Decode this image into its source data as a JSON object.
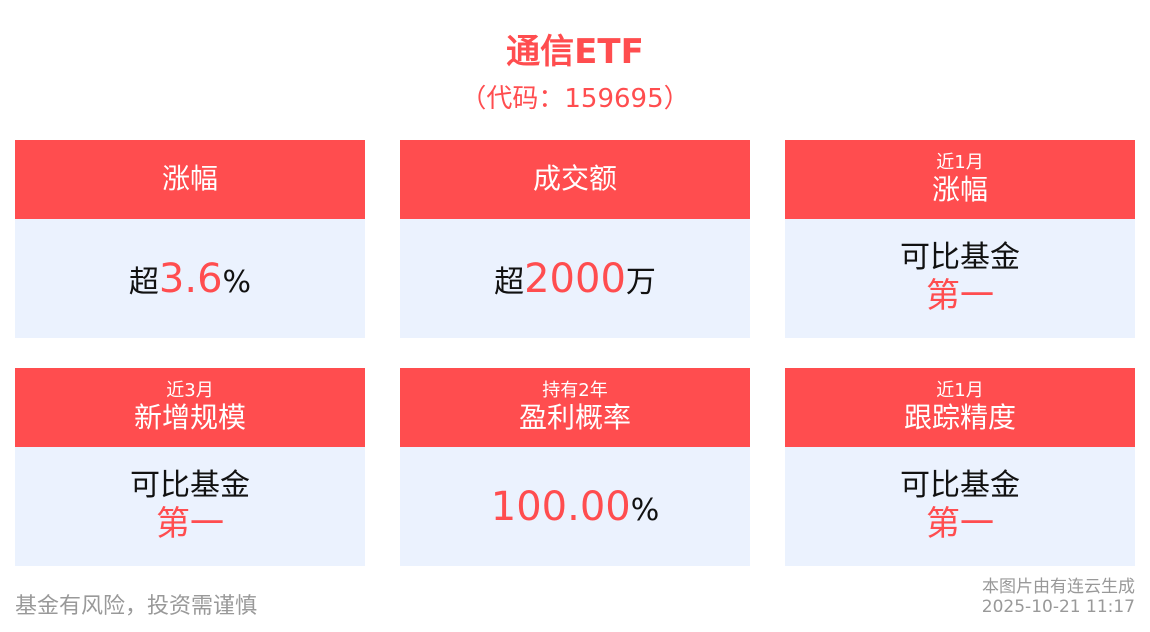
{
  "header": {
    "title": "通信ETF",
    "code": "（代码：159695）"
  },
  "colors": {
    "accent": "#ff4d4f",
    "card_bg": "#ebf2fe"
  },
  "cards": [
    {
      "pre": "",
      "label": "涨幅",
      "prefix": "超",
      "value": "3.6",
      "suffix": "%"
    },
    {
      "pre": "",
      "label": "成交额",
      "prefix": "超",
      "value": "2000",
      "suffix": "万"
    },
    {
      "pre": "近1月",
      "label": "涨幅",
      "line1": "可比基金",
      "line2": "第一"
    },
    {
      "pre": "近3月",
      "label": "新增规模",
      "line1": "可比基金",
      "line2": "第一"
    },
    {
      "pre": "持有2年",
      "label": "盈利概率",
      "prefix": "",
      "value": "100.00",
      "suffix": "%"
    },
    {
      "pre": "近1月",
      "label": "跟踪精度",
      "line1": "可比基金",
      "line2": "第一"
    }
  ],
  "footer": {
    "risk": "基金有风险，投资需谨慎",
    "source": "本图片由有连云生成",
    "timestamp": "2025-10-21 11:17"
  }
}
